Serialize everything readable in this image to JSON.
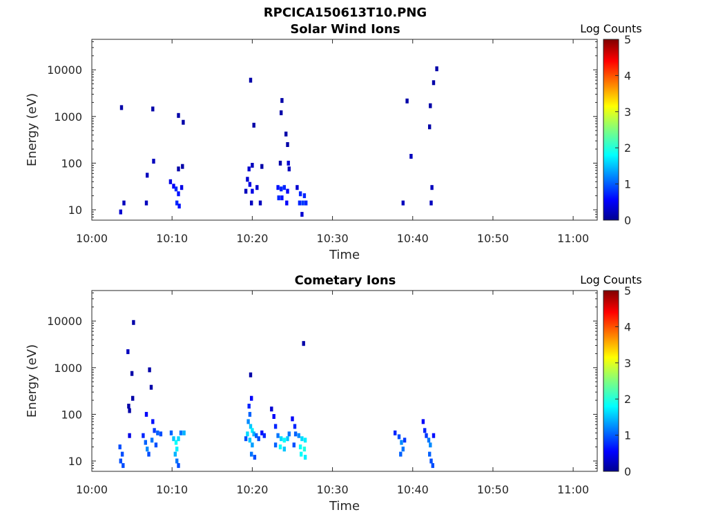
{
  "figure_title": "RPCICA150613T10.PNG",
  "colorbar": {
    "label": "Log Counts",
    "min": 0,
    "max": 5,
    "ticks": [
      "0",
      "1",
      "2",
      "3",
      "4",
      "5"
    ],
    "colormap": "jet"
  },
  "chart_data": [
    {
      "type": "heatmap",
      "title": "Solar Wind Ions",
      "xlabel": "Time",
      "ylabel": "Energy (eV)",
      "y_scale": "log",
      "x_ticks": [
        "10:00",
        "10:10",
        "10:20",
        "10:30",
        "10:40",
        "10:50",
        "11:00"
      ],
      "y_ticks": [
        "10",
        "100",
        "1000",
        "10000"
      ],
      "x_range_min": [
        0,
        63
      ],
      "y_range": [
        6,
        45000
      ],
      "cells": [
        {
          "t": 3.7,
          "e": 1550,
          "v": 0.2
        },
        {
          "t": 7.6,
          "e": 1450,
          "v": 0.2
        },
        {
          "t": 10.8,
          "e": 1050,
          "v": 0.2
        },
        {
          "t": 11.4,
          "e": 750,
          "v": 0.2
        },
        {
          "t": 7.7,
          "e": 110,
          "v": 0.3
        },
        {
          "t": 6.9,
          "e": 55,
          "v": 0.3
        },
        {
          "t": 10.8,
          "e": 75,
          "v": 0.2
        },
        {
          "t": 11.3,
          "e": 85,
          "v": 0.2
        },
        {
          "t": 3.6,
          "e": 9,
          "v": 0.4
        },
        {
          "t": 4.0,
          "e": 14,
          "v": 0.3
        },
        {
          "t": 6.8,
          "e": 14,
          "v": 0.3
        },
        {
          "t": 9.8,
          "e": 40,
          "v": 0.5
        },
        {
          "t": 10.2,
          "e": 32,
          "v": 0.6
        },
        {
          "t": 10.5,
          "e": 28,
          "v": 0.8
        },
        {
          "t": 10.8,
          "e": 22,
          "v": 0.7
        },
        {
          "t": 10.6,
          "e": 14,
          "v": 0.8
        },
        {
          "t": 10.9,
          "e": 12,
          "v": 0.7
        },
        {
          "t": 11.2,
          "e": 30,
          "v": 0.5
        },
        {
          "t": 19.8,
          "e": 6000,
          "v": 0.2
        },
        {
          "t": 20.2,
          "e": 650,
          "v": 0.2
        },
        {
          "t": 20.0,
          "e": 90,
          "v": 0.3
        },
        {
          "t": 21.2,
          "e": 85,
          "v": 0.2
        },
        {
          "t": 19.6,
          "e": 75,
          "v": 0.4
        },
        {
          "t": 19.4,
          "e": 45,
          "v": 0.4
        },
        {
          "t": 19.2,
          "e": 25,
          "v": 0.3
        },
        {
          "t": 19.7,
          "e": 35,
          "v": 0.5
        },
        {
          "t": 20.0,
          "e": 25,
          "v": 0.5
        },
        {
          "t": 20.6,
          "e": 30,
          "v": 0.4
        },
        {
          "t": 19.9,
          "e": 14,
          "v": 0.3
        },
        {
          "t": 21.0,
          "e": 14,
          "v": 0.3
        },
        {
          "t": 23.7,
          "e": 2200,
          "v": 0.2
        },
        {
          "t": 23.6,
          "e": 1200,
          "v": 0.2
        },
        {
          "t": 24.2,
          "e": 420,
          "v": 0.2
        },
        {
          "t": 24.4,
          "e": 250,
          "v": 0.2
        },
        {
          "t": 23.5,
          "e": 100,
          "v": 0.2
        },
        {
          "t": 24.5,
          "e": 100,
          "v": 0.4
        },
        {
          "t": 24.6,
          "e": 75,
          "v": 0.3
        },
        {
          "t": 23.2,
          "e": 30,
          "v": 0.7
        },
        {
          "t": 23.6,
          "e": 28,
          "v": 0.8
        },
        {
          "t": 24.0,
          "e": 30,
          "v": 0.8
        },
        {
          "t": 24.4,
          "e": 25,
          "v": 0.6
        },
        {
          "t": 23.3,
          "e": 18,
          "v": 0.8
        },
        {
          "t": 23.7,
          "e": 18,
          "v": 0.7
        },
        {
          "t": 24.3,
          "e": 14,
          "v": 0.6
        },
        {
          "t": 25.6,
          "e": 30,
          "v": 0.4
        },
        {
          "t": 25.9,
          "e": 14,
          "v": 0.8
        },
        {
          "t": 26.3,
          "e": 14,
          "v": 0.9
        },
        {
          "t": 26.7,
          "e": 14,
          "v": 0.8
        },
        {
          "t": 26.0,
          "e": 22,
          "v": 0.8
        },
        {
          "t": 26.5,
          "e": 20,
          "v": 0.8
        },
        {
          "t": 26.2,
          "e": 8,
          "v": 0.4
        },
        {
          "t": 39.3,
          "e": 2150,
          "v": 0.2
        },
        {
          "t": 39.8,
          "e": 140,
          "v": 0.3
        },
        {
          "t": 38.8,
          "e": 14,
          "v": 0.3
        },
        {
          "t": 42.2,
          "e": 1700,
          "v": 0.2
        },
        {
          "t": 42.1,
          "e": 600,
          "v": 0.2
        },
        {
          "t": 42.6,
          "e": 5300,
          "v": 0.2
        },
        {
          "t": 43.0,
          "e": 10500,
          "v": 0.2
        },
        {
          "t": 42.4,
          "e": 30,
          "v": 0.3
        },
        {
          "t": 42.3,
          "e": 14,
          "v": 0.3
        }
      ]
    },
    {
      "type": "heatmap",
      "title": "Cometary Ions",
      "xlabel": "Time",
      "ylabel": "Energy (eV)",
      "y_scale": "log",
      "x_ticks": [
        "10:00",
        "10:10",
        "10:20",
        "10:30",
        "10:40",
        "10:50",
        "11:00"
      ],
      "y_ticks": [
        "10",
        "100",
        "1000",
        "10000"
      ],
      "x_range_min": [
        0,
        63
      ],
      "y_range": [
        6,
        45000
      ],
      "cells": [
        {
          "t": 5.2,
          "e": 9300,
          "v": 0.2
        },
        {
          "t": 4.5,
          "e": 2200,
          "v": 0.3
        },
        {
          "t": 5.0,
          "e": 750,
          "v": 0.2
        },
        {
          "t": 7.2,
          "e": 900,
          "v": 0.2
        },
        {
          "t": 7.4,
          "e": 380,
          "v": 0.2
        },
        {
          "t": 5.1,
          "e": 220,
          "v": 0.2
        },
        {
          "t": 4.6,
          "e": 150,
          "v": 0.2
        },
        {
          "t": 4.7,
          "e": 120,
          "v": 0.2
        },
        {
          "t": 3.5,
          "e": 20,
          "v": 1.0
        },
        {
          "t": 3.8,
          "e": 14,
          "v": 1.0
        },
        {
          "t": 3.6,
          "e": 10,
          "v": 1.0
        },
        {
          "t": 3.9,
          "e": 8,
          "v": 1.0
        },
        {
          "t": 4.7,
          "e": 35,
          "v": 0.5
        },
        {
          "t": 6.4,
          "e": 35,
          "v": 0.8
        },
        {
          "t": 6.7,
          "e": 25,
          "v": 1.1
        },
        {
          "t": 6.9,
          "e": 18,
          "v": 1.3
        },
        {
          "t": 7.1,
          "e": 14,
          "v": 1.0
        },
        {
          "t": 6.8,
          "e": 100,
          "v": 0.6
        },
        {
          "t": 7.6,
          "e": 70,
          "v": 0.7
        },
        {
          "t": 7.8,
          "e": 45,
          "v": 0.9
        },
        {
          "t": 8.2,
          "e": 40,
          "v": 1.1
        },
        {
          "t": 8.6,
          "e": 38,
          "v": 1.0
        },
        {
          "t": 7.5,
          "e": 28,
          "v": 1.2
        },
        {
          "t": 8.0,
          "e": 22,
          "v": 1.0
        },
        {
          "t": 9.9,
          "e": 40,
          "v": 1.1
        },
        {
          "t": 10.2,
          "e": 30,
          "v": 1.6
        },
        {
          "t": 10.5,
          "e": 25,
          "v": 1.9
        },
        {
          "t": 10.8,
          "e": 30,
          "v": 1.7
        },
        {
          "t": 11.1,
          "e": 40,
          "v": 1.2
        },
        {
          "t": 11.5,
          "e": 40,
          "v": 1.5
        },
        {
          "t": 10.6,
          "e": 18,
          "v": 1.8
        },
        {
          "t": 10.4,
          "e": 14,
          "v": 1.5
        },
        {
          "t": 10.6,
          "e": 10,
          "v": 1.2
        },
        {
          "t": 10.8,
          "e": 8,
          "v": 1.0
        },
        {
          "t": 19.8,
          "e": 700,
          "v": 0.2
        },
        {
          "t": 19.9,
          "e": 220,
          "v": 0.6
        },
        {
          "t": 19.6,
          "e": 150,
          "v": 0.8
        },
        {
          "t": 19.7,
          "e": 100,
          "v": 1.1
        },
        {
          "t": 19.5,
          "e": 70,
          "v": 1.3
        },
        {
          "t": 19.8,
          "e": 55,
          "v": 1.6
        },
        {
          "t": 20.0,
          "e": 45,
          "v": 1.8
        },
        {
          "t": 19.4,
          "e": 38,
          "v": 1.7
        },
        {
          "t": 20.2,
          "e": 38,
          "v": 1.5
        },
        {
          "t": 19.7,
          "e": 28,
          "v": 1.6
        },
        {
          "t": 20.0,
          "e": 22,
          "v": 1.4
        },
        {
          "t": 19.9,
          "e": 14,
          "v": 1.2
        },
        {
          "t": 20.3,
          "e": 12,
          "v": 1.0
        },
        {
          "t": 20.5,
          "e": 35,
          "v": 1.1
        },
        {
          "t": 20.8,
          "e": 30,
          "v": 1.0
        },
        {
          "t": 19.2,
          "e": 30,
          "v": 1.0
        },
        {
          "t": 21.2,
          "e": 40,
          "v": 0.7
        },
        {
          "t": 21.5,
          "e": 35,
          "v": 0.8
        },
        {
          "t": 22.4,
          "e": 130,
          "v": 0.4
        },
        {
          "t": 22.7,
          "e": 90,
          "v": 0.6
        },
        {
          "t": 22.9,
          "e": 55,
          "v": 0.8
        },
        {
          "t": 23.2,
          "e": 35,
          "v": 1.2
        },
        {
          "t": 23.6,
          "e": 30,
          "v": 1.7
        },
        {
          "t": 24.0,
          "e": 28,
          "v": 1.9
        },
        {
          "t": 24.4,
          "e": 30,
          "v": 1.6
        },
        {
          "t": 23.5,
          "e": 20,
          "v": 1.9
        },
        {
          "t": 24.0,
          "e": 18,
          "v": 1.6
        },
        {
          "t": 24.6,
          "e": 38,
          "v": 1.2
        },
        {
          "t": 22.9,
          "e": 22,
          "v": 1.1
        },
        {
          "t": 25.0,
          "e": 80,
          "v": 0.6
        },
        {
          "t": 25.3,
          "e": 55,
          "v": 0.8
        },
        {
          "t": 25.4,
          "e": 38,
          "v": 1.1
        },
        {
          "t": 25.8,
          "e": 35,
          "v": 1.3
        },
        {
          "t": 26.2,
          "e": 30,
          "v": 1.7
        },
        {
          "t": 26.6,
          "e": 28,
          "v": 1.8
        },
        {
          "t": 26.0,
          "e": 20,
          "v": 1.9
        },
        {
          "t": 26.5,
          "e": 18,
          "v": 2.0
        },
        {
          "t": 26.1,
          "e": 14,
          "v": 1.9
        },
        {
          "t": 26.6,
          "e": 12,
          "v": 1.8
        },
        {
          "t": 25.2,
          "e": 22,
          "v": 1.0
        },
        {
          "t": 26.4,
          "e": 3300,
          "v": 0.2
        },
        {
          "t": 37.8,
          "e": 40,
          "v": 0.8
        },
        {
          "t": 38.3,
          "e": 33,
          "v": 1.0
        },
        {
          "t": 38.6,
          "e": 25,
          "v": 1.3
        },
        {
          "t": 38.8,
          "e": 18,
          "v": 1.2
        },
        {
          "t": 38.5,
          "e": 14,
          "v": 1.1
        },
        {
          "t": 39.0,
          "e": 28,
          "v": 0.9
        },
        {
          "t": 41.3,
          "e": 70,
          "v": 0.6
        },
        {
          "t": 41.5,
          "e": 45,
          "v": 0.8
        },
        {
          "t": 41.7,
          "e": 35,
          "v": 0.9
        },
        {
          "t": 42.0,
          "e": 28,
          "v": 1.2
        },
        {
          "t": 42.2,
          "e": 22,
          "v": 1.3
        },
        {
          "t": 42.1,
          "e": 14,
          "v": 1.1
        },
        {
          "t": 42.3,
          "e": 10,
          "v": 1.0
        },
        {
          "t": 42.6,
          "e": 35,
          "v": 0.7
        },
        {
          "t": 42.5,
          "e": 8,
          "v": 1.0
        }
      ]
    }
  ]
}
